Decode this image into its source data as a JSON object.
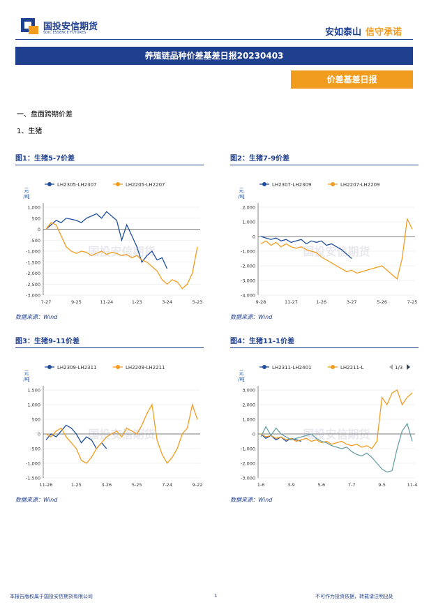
{
  "header": {
    "logo_cn": "国投安信期货",
    "logo_en": "SDIC ESSENCE FUTURES",
    "slogan_1": "安如泰山",
    "slogan_2": "信守承诺"
  },
  "banner": "养殖链品种价差基差日报20230403",
  "tag": "价差基差日报",
  "section": "一、盘面跨期价差",
  "subsection": "1、生猪",
  "watermark": "国投安信期货",
  "charts": [
    {
      "type": "line",
      "title": "图1：生猪5-7价差",
      "source": "数据来源：Wind",
      "y_unit_top": "元",
      "y_unit_bottom": "/吨",
      "categories": [
        "7-27",
        null,
        null,
        null,
        null,
        null,
        "9-25",
        null,
        null,
        null,
        null,
        null,
        "11-24",
        null,
        null,
        null,
        null,
        null,
        "1-23",
        null,
        null,
        null,
        null,
        null,
        "3-24",
        null,
        null,
        null,
        null,
        null,
        "5-23"
      ],
      "ylim": [
        -3000,
        1000
      ],
      "yticks": [
        {
          "value": 1000,
          "label": "1,000"
        },
        500,
        0,
        -500,
        {
          "value": -1000,
          "label": "-1,000"
        },
        {
          "value": -1500,
          "label": "-1,500"
        },
        {
          "value": -2000,
          "label": "-2,000"
        },
        {
          "value": -2500,
          "label": "-2,500"
        },
        {
          "value": -3000,
          "label": "-3,000"
        }
      ],
      "series": [
        {
          "name": "LH2305-LH2307",
          "color": "#1f4e9c",
          "values": [
            0,
            200,
            400,
            300,
            500,
            450,
            400,
            300,
            500,
            600,
            700,
            500,
            800,
            600,
            400,
            -500,
            200,
            -300,
            -800,
            -1500,
            -1200,
            -1000,
            -1400,
            -1300,
            -1800,
            null,
            null,
            null,
            null,
            null,
            null
          ]
        },
        {
          "name": "LH2205-LH2207",
          "color": "#f29c1f",
          "values": [
            0,
            300,
            200,
            -300,
            -800,
            -1000,
            -1100,
            -1000,
            -1050,
            -1200,
            -1100,
            -1000,
            -1150,
            -1050,
            -1100,
            -1200,
            -1150,
            -1300,
            -1200,
            -1400,
            -1500,
            -1700,
            -1900,
            -2300,
            -2500,
            -2300,
            -2400,
            -2700,
            -2500,
            -2000,
            -800
          ]
        }
      ]
    },
    {
      "type": "line",
      "title": "图2：生猪7-9价差",
      "source": "数据来源：Wind",
      "y_unit_top": "元",
      "y_unit_bottom": "/吨",
      "categories": [
        "9-28",
        null,
        null,
        null,
        null,
        null,
        "11-27",
        null,
        null,
        null,
        null,
        null,
        "1-26",
        null,
        null,
        null,
        null,
        null,
        "3-27",
        null,
        null,
        null,
        null,
        null,
        "5-26",
        null,
        null,
        null,
        null,
        null,
        "7-25"
      ],
      "ylim": [
        -4000,
        2000
      ],
      "yticks": [
        {
          "value": 2000,
          "label": "2,000"
        },
        {
          "value": 1000,
          "label": "1,000"
        },
        0,
        {
          "value": -1000,
          "label": "-1,000"
        },
        {
          "value": -2000,
          "label": "-2,000"
        },
        {
          "value": -3000,
          "label": "-3,000"
        },
        {
          "value": -4000,
          "label": "-4,000"
        }
      ],
      "series": [
        {
          "name": "LH2307-LH2309",
          "color": "#1f4e9c",
          "values": [
            0,
            -100,
            -200,
            -100,
            -300,
            -200,
            -400,
            -300,
            -200,
            -500,
            -300,
            -400,
            -300,
            -600,
            -500,
            -700,
            -900,
            -1200,
            -1500,
            null,
            null,
            null,
            null,
            null,
            null,
            null,
            null,
            null,
            null,
            null,
            null
          ]
        },
        {
          "name": "LH2207-LH2209",
          "color": "#f29c1f",
          "values": [
            -500,
            -300,
            -600,
            -400,
            -700,
            -500,
            -700,
            -800,
            -700,
            -900,
            -1000,
            -1100,
            -1400,
            -1600,
            -1800,
            -2000,
            -2200,
            -2400,
            -2300,
            -2500,
            -2400,
            -2300,
            -2200,
            -2100,
            -2000,
            -2300,
            -2600,
            -2900,
            -1500,
            1200,
            500
          ]
        }
      ]
    },
    {
      "type": "line",
      "title": "图3：生猪9-11价差",
      "source": "数据来源：Wind",
      "y_unit_top": "元",
      "y_unit_bottom": "/吨",
      "categories": [
        "11-26",
        null,
        null,
        null,
        null,
        null,
        "1-25",
        null,
        null,
        null,
        null,
        null,
        "3-26",
        null,
        null,
        null,
        null,
        null,
        "5-25",
        null,
        null,
        null,
        null,
        null,
        "7-24",
        null,
        null,
        null,
        null,
        null,
        "9-22"
      ],
      "ylim": [
        -1500,
        1500
      ],
      "yticks": [
        {
          "value": 1500,
          "label": "1,500"
        },
        {
          "value": 1000,
          "label": "1,000"
        },
        500,
        0,
        -500,
        {
          "value": -1000,
          "label": "-1,000"
        },
        {
          "value": -1500,
          "label": "-1,500"
        }
      ],
      "series": [
        {
          "name": "LH2309-LH2311",
          "color": "#1f4e9c",
          "values": [
            -200,
            0,
            -100,
            100,
            300,
            200,
            0,
            -300,
            -100,
            -200,
            -500,
            -300,
            -500,
            null,
            null,
            null,
            null,
            null,
            null,
            null,
            null,
            null,
            null,
            null,
            null,
            null,
            null,
            null,
            null,
            null,
            null
          ]
        },
        {
          "name": "LH2209-LH2211",
          "color": "#f29c1f",
          "values": [
            0,
            -100,
            100,
            200,
            -100,
            -300,
            -500,
            -900,
            -1000,
            -800,
            -500,
            -300,
            -100,
            0,
            100,
            -100,
            200,
            100,
            0,
            300,
            700,
            1000,
            -200,
            -700,
            -1000,
            -800,
            -500,
            0,
            200,
            1000,
            500
          ]
        }
      ]
    },
    {
      "type": "line",
      "title": "图4：生猪11-1价差",
      "source": "数据来源：Wind",
      "y_unit_top": "元",
      "y_unit_bottom": "/吨",
      "legend_pager": "1/3",
      "categories": [
        "1-6",
        null,
        null,
        null,
        null,
        null,
        "3-9",
        null,
        null,
        null,
        null,
        null,
        "5-6",
        null,
        null,
        null,
        null,
        null,
        "7-7",
        null,
        null,
        null,
        null,
        null,
        "9-5",
        null,
        null,
        null,
        null,
        null,
        "11-4"
      ],
      "ylim": [
        -3000,
        3000
      ],
      "yticks": [
        {
          "value": 3000,
          "label": "3,000"
        },
        {
          "value": 2000,
          "label": "2,000"
        },
        {
          "value": 1000,
          "label": "1,000"
        },
        0,
        {
          "value": -1000,
          "label": "-1,000"
        },
        {
          "value": -2000,
          "label": "-2,000"
        },
        {
          "value": -3000,
          "label": "-3,000"
        }
      ],
      "series": [
        {
          "name": "LH2311-LH2401",
          "color": "#1f4e9c",
          "values": [
            0,
            -300,
            -100,
            -400,
            -200,
            -500,
            -300,
            -400,
            -500,
            null,
            null,
            null,
            null,
            null,
            null,
            null,
            null,
            null,
            null,
            null,
            null,
            null,
            null,
            null,
            null,
            null,
            null,
            null,
            null,
            null,
            null
          ]
        },
        {
          "name": "LH2211-L",
          "color": "#f29c1f",
          "values": [
            0,
            -200,
            -100,
            -300,
            -200,
            -400,
            -300,
            -500,
            -400,
            -300,
            -500,
            -400,
            -600,
            -500,
            -700,
            -600,
            -500,
            -700,
            -800,
            -700,
            -900,
            -800,
            -1000,
            -500,
            2500,
            2000,
            2800,
            3000,
            2000,
            2500,
            2800
          ]
        },
        {
          "color": "#6a9fa8",
          "values": [
            -200,
            500,
            -100,
            400,
            0,
            -200,
            -400,
            -300,
            -200,
            -100,
            0,
            -300,
            -500,
            -600,
            -800,
            -900,
            -1000,
            -900,
            -1200,
            -1400,
            -1500,
            -1300,
            -1600,
            -2000,
            -2400,
            -2600,
            -2500,
            -1000,
            200,
            700,
            -500
          ]
        }
      ]
    }
  ],
  "footer": {
    "left": "本报告版权属于国投安信期货有限公司",
    "page": "1",
    "right": "不可作为投资依据，转载请注明出处"
  }
}
